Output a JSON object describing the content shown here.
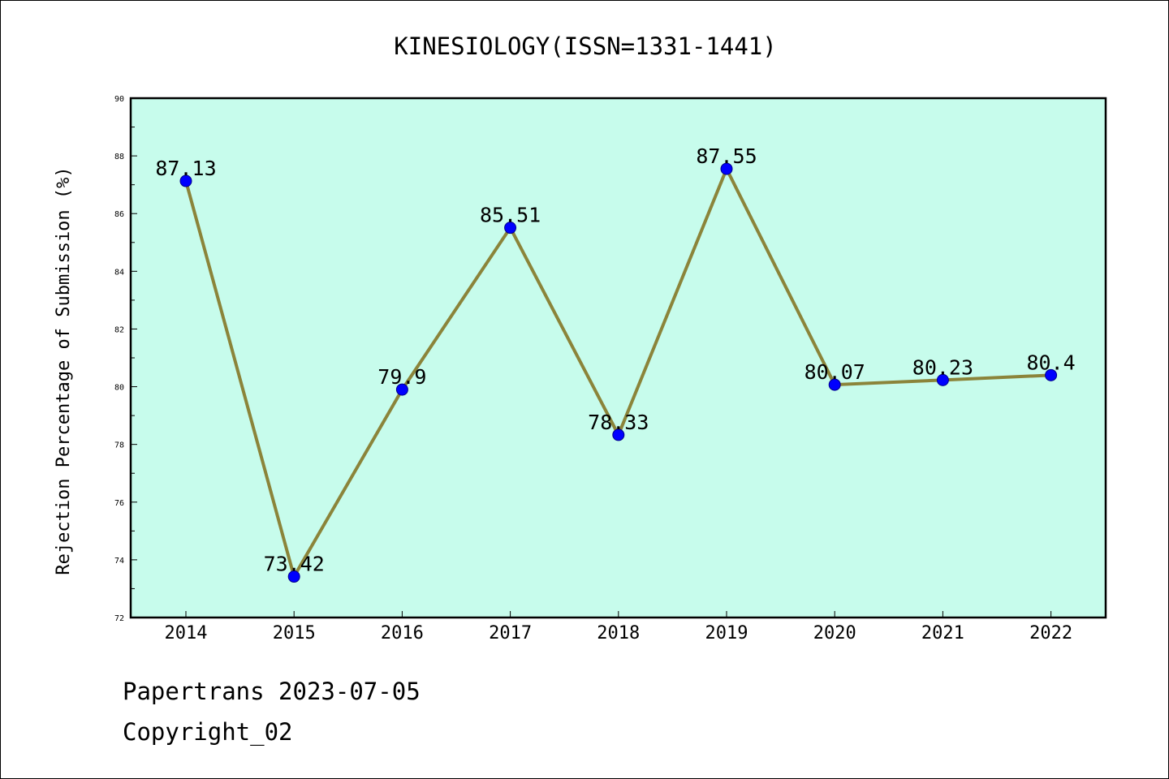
{
  "chart_data": {
    "type": "line",
    "title": "KINESIOLOGY(ISSN=1331-1441)",
    "xlabel": "",
    "ylabel": "Rejection Percentage of Submission (%)",
    "categories": [
      "2014",
      "2015",
      "2016",
      "2017",
      "2018",
      "2019",
      "2020",
      "2021",
      "2022"
    ],
    "values": [
      87.13,
      73.42,
      79.9,
      85.51,
      78.33,
      87.55,
      80.07,
      80.23,
      80.4
    ],
    "data_labels": [
      "87.13",
      "73.42",
      "79.9",
      "85.51",
      "78.33",
      "87.55",
      "80.07",
      "80.23",
      "80.4"
    ],
    "ylim": [
      72,
      90
    ],
    "yticks": [
      72,
      74,
      76,
      78,
      80,
      82,
      84,
      86,
      88,
      90
    ],
    "grid": false,
    "colors": {
      "plot_background": "#c7fcec",
      "line": "#8b843a",
      "marker": "#0000ff"
    }
  },
  "footer": {
    "line1": "Papertrans 2023-07-05",
    "line2": "Copyright_02"
  }
}
